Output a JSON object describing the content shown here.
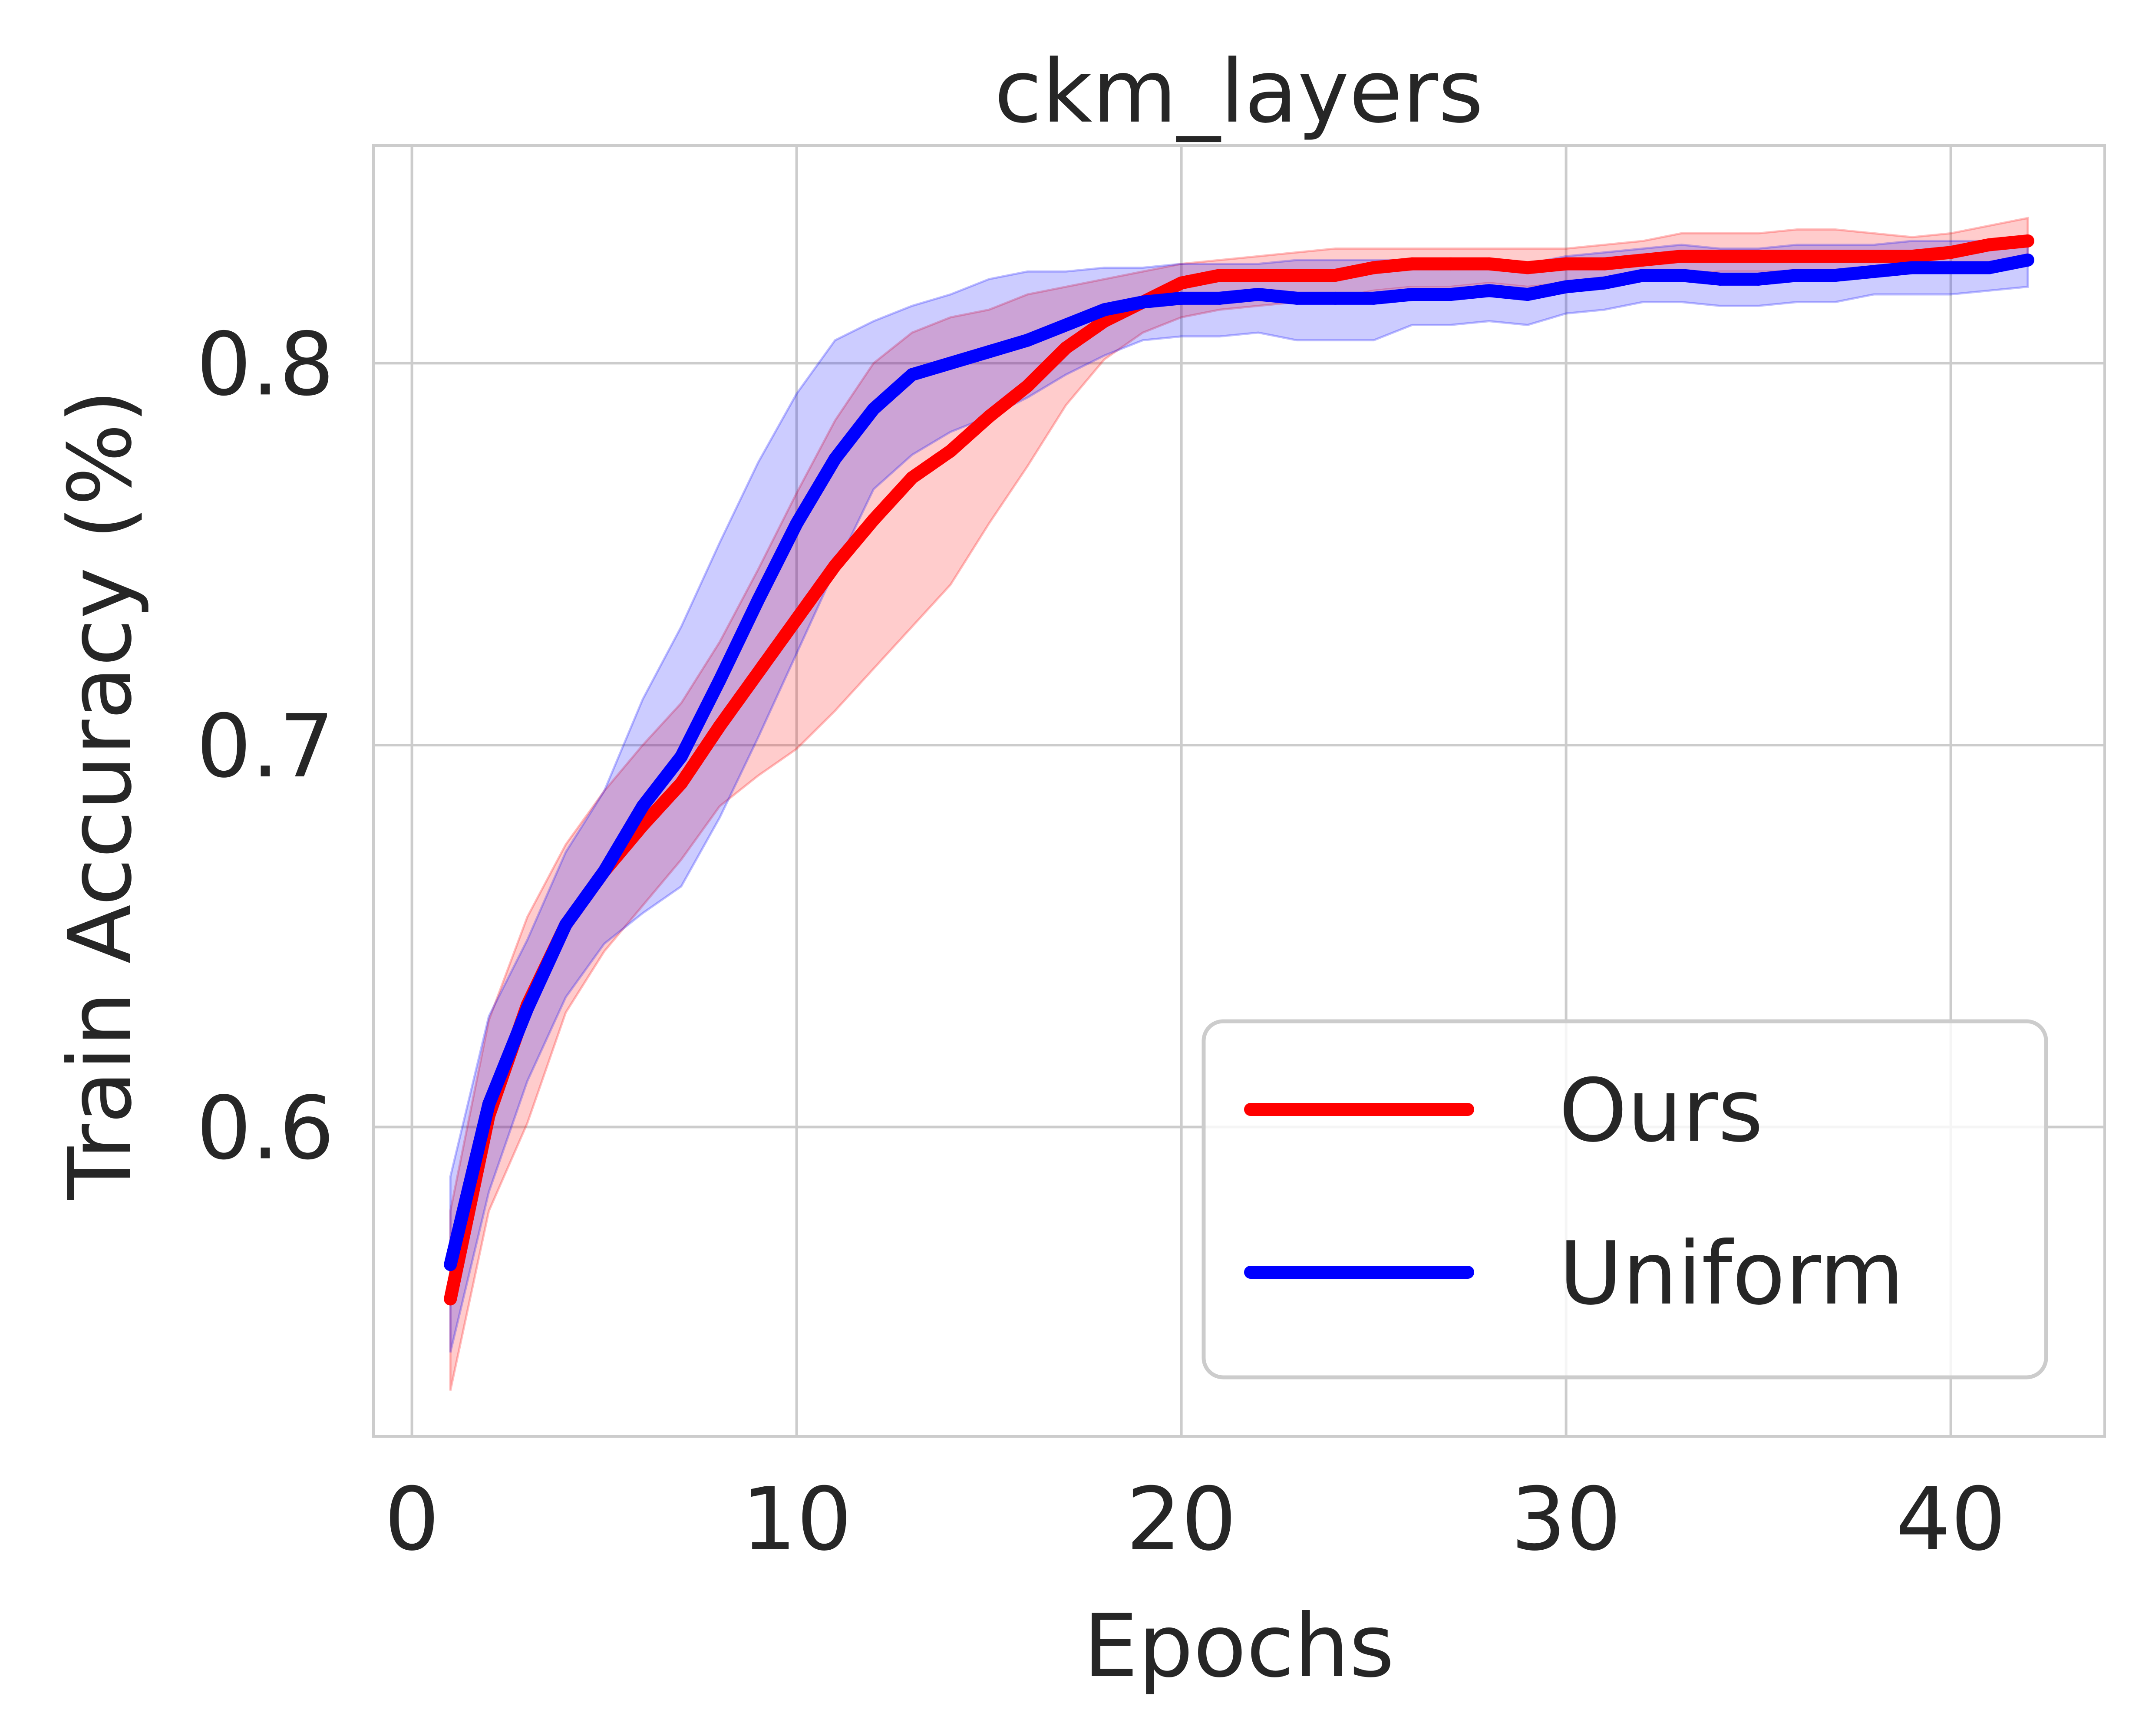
{
  "chart_data": {
    "type": "line",
    "title": "ckm_layers",
    "xlabel": "Epochs",
    "ylabel": "Train Accuracy (%)",
    "xlim": [
      -1,
      44
    ],
    "ylim": [
      0.519,
      0.857
    ],
    "xticks": [
      0,
      10,
      20,
      30,
      40
    ],
    "yticks": [
      0.6,
      0.7,
      0.8
    ],
    "x_tick_labels": [
      "0",
      "10",
      "20",
      "30",
      "40"
    ],
    "y_tick_labels": [
      "0.6",
      "0.7",
      "0.8"
    ],
    "grid": true,
    "legend_position": "lower-right",
    "x": [
      1,
      2,
      3,
      4,
      5,
      6,
      7,
      8,
      9,
      10,
      11,
      12,
      13,
      14,
      15,
      16,
      17,
      18,
      19,
      20,
      21,
      22,
      23,
      24,
      25,
      26,
      27,
      28,
      29,
      30,
      31,
      32,
      33,
      34,
      35,
      36,
      37,
      38,
      39,
      40,
      41,
      42
    ],
    "series": [
      {
        "name": "Ours",
        "color": "#ff0000",
        "values": [
          0.555,
          0.603,
          0.632,
          0.653,
          0.667,
          0.679,
          0.69,
          0.705,
          0.719,
          0.733,
          0.747,
          0.759,
          0.77,
          0.777,
          0.786,
          0.794,
          0.804,
          0.811,
          0.816,
          0.821,
          0.823,
          0.823,
          0.823,
          0.823,
          0.825,
          0.826,
          0.826,
          0.826,
          0.825,
          0.826,
          0.826,
          0.827,
          0.828,
          0.828,
          0.828,
          0.828,
          0.828,
          0.828,
          0.828,
          0.829,
          0.831,
          0.832
        ],
        "lower": [
          0.531,
          0.578,
          0.601,
          0.63,
          0.646,
          0.658,
          0.67,
          0.684,
          0.692,
          0.699,
          0.709,
          0.72,
          0.731,
          0.742,
          0.758,
          0.773,
          0.789,
          0.801,
          0.808,
          0.812,
          0.814,
          0.815,
          0.816,
          0.817,
          0.819,
          0.82,
          0.82,
          0.821,
          0.82,
          0.821,
          0.821,
          0.823,
          0.823,
          0.824,
          0.824,
          0.824,
          0.824,
          0.824,
          0.824,
          0.825,
          0.826,
          0.826
        ],
        "upper": [
          0.578,
          0.628,
          0.655,
          0.674,
          0.688,
          0.7,
          0.711,
          0.727,
          0.746,
          0.766,
          0.785,
          0.8,
          0.808,
          0.812,
          0.814,
          0.818,
          0.82,
          0.822,
          0.824,
          0.826,
          0.827,
          0.828,
          0.829,
          0.83,
          0.83,
          0.83,
          0.83,
          0.83,
          0.83,
          0.83,
          0.831,
          0.832,
          0.834,
          0.834,
          0.834,
          0.835,
          0.835,
          0.834,
          0.833,
          0.834,
          0.836,
          0.838
        ]
      },
      {
        "name": "Uniform",
        "color": "#0000ff",
        "values": [
          0.564,
          0.606,
          0.631,
          0.653,
          0.667,
          0.684,
          0.697,
          0.717,
          0.738,
          0.758,
          0.775,
          0.788,
          0.797,
          0.8,
          0.803,
          0.806,
          0.81,
          0.814,
          0.816,
          0.817,
          0.817,
          0.818,
          0.817,
          0.817,
          0.817,
          0.818,
          0.818,
          0.819,
          0.818,
          0.82,
          0.821,
          0.823,
          0.823,
          0.822,
          0.822,
          0.823,
          0.823,
          0.824,
          0.825,
          0.825,
          0.825,
          0.827
        ],
        "lower": [
          0.541,
          0.583,
          0.612,
          0.634,
          0.648,
          0.656,
          0.663,
          0.681,
          0.702,
          0.724,
          0.746,
          0.767,
          0.776,
          0.782,
          0.786,
          0.791,
          0.797,
          0.802,
          0.806,
          0.807,
          0.807,
          0.808,
          0.806,
          0.806,
          0.806,
          0.81,
          0.81,
          0.811,
          0.81,
          0.813,
          0.814,
          0.816,
          0.816,
          0.815,
          0.815,
          0.816,
          0.816,
          0.818,
          0.818,
          0.818,
          0.819,
          0.82
        ],
        "upper": [
          0.587,
          0.629,
          0.649,
          0.672,
          0.688,
          0.712,
          0.731,
          0.753,
          0.774,
          0.792,
          0.806,
          0.811,
          0.815,
          0.818,
          0.822,
          0.824,
          0.824,
          0.825,
          0.825,
          0.826,
          0.826,
          0.826,
          0.827,
          0.827,
          0.827,
          0.827,
          0.827,
          0.827,
          0.826,
          0.828,
          0.829,
          0.83,
          0.831,
          0.83,
          0.83,
          0.831,
          0.831,
          0.831,
          0.832,
          0.832,
          0.832,
          0.833
        ]
      }
    ]
  }
}
